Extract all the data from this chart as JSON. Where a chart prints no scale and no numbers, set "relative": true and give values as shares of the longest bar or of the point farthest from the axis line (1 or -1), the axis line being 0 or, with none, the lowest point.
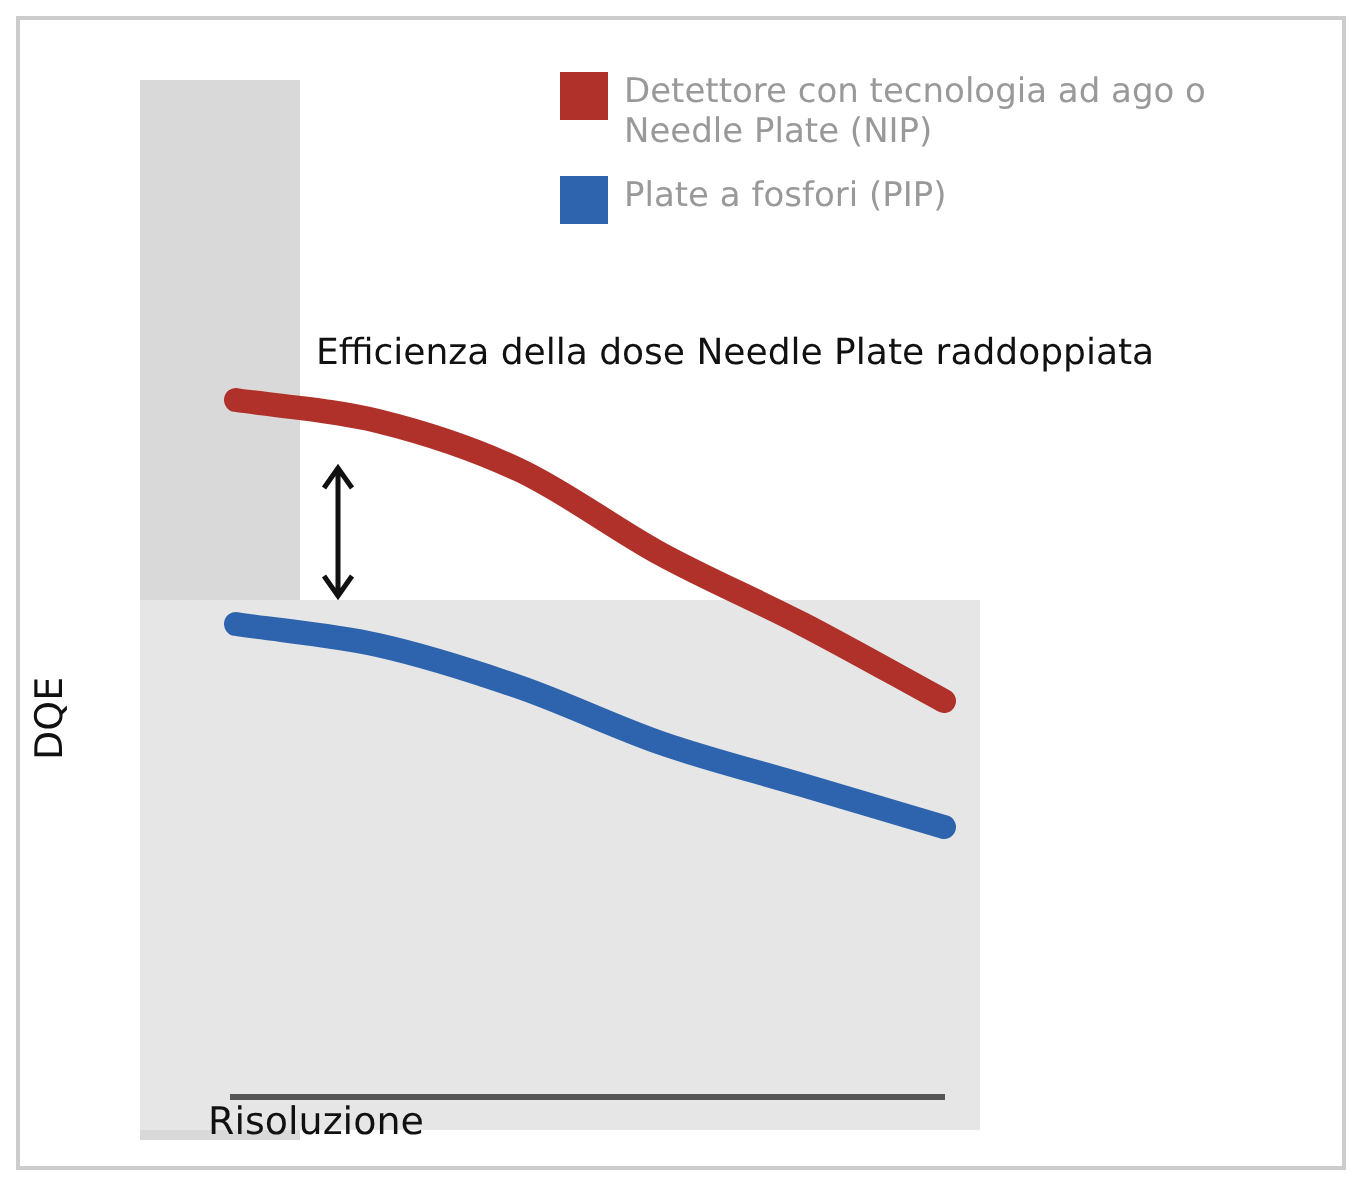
{
  "chart_data": {
    "type": "line",
    "relative": true,
    "xlabel": "Risoluzione",
    "ylabel": "DQE",
    "categories": [
      null,
      null,
      null,
      null,
      null,
      null
    ],
    "series": [
      {
        "name": "Detettore con tecnologia ad ago o Needle Plate (NIP)",
        "color": "#b0302a",
        "values": [
          1,
          0.97,
          0.9,
          0.78,
          0.68,
          0.57
        ]
      },
      {
        "name": "Plate a fosfori (PIP)",
        "color": "#2e64ad",
        "values": [
          0.68,
          0.65,
          0.59,
          0.51,
          0.45,
          0.39
        ]
      }
    ],
    "annotations": [
      "Efficienza della dose Needle Plate raddoppiata"
    ],
    "legend": "top right",
    "marker": "none",
    "line_style": "solid"
  }
}
